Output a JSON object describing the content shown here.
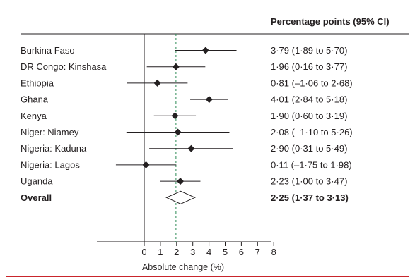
{
  "chart_data": {
    "type": "forest",
    "column_header": "Percentage points (95% CI)",
    "xlabel": "Absolute change (%)",
    "xlim": [
      0,
      8
    ],
    "x_ticks": [
      0,
      1,
      2,
      3,
      4,
      5,
      6,
      7,
      8
    ],
    "reference_line": 1.96,
    "rows": [
      {
        "label": "Burkina Faso",
        "estimate": 3.79,
        "lower": 1.89,
        "upper": 5.7,
        "text": "3·79 (1·89 to 5·70)"
      },
      {
        "label": "DR Congo: Kinshasa",
        "estimate": 1.96,
        "lower": 0.16,
        "upper": 3.77,
        "text": "1·96 (0·16 to 3·77)"
      },
      {
        "label": "Ethiopia",
        "estimate": 0.81,
        "lower": -1.06,
        "upper": 2.68,
        "text": "0·81 (–1·06 to 2·68)"
      },
      {
        "label": "Ghana",
        "estimate": 4.01,
        "lower": 2.84,
        "upper": 5.18,
        "text": "4·01 (2·84 to 5·18)"
      },
      {
        "label": "Kenya",
        "estimate": 1.9,
        "lower": 0.6,
        "upper": 3.19,
        "text": "1·90 (0·60 to 3·19)"
      },
      {
        "label": "Niger: Niamey",
        "estimate": 2.08,
        "lower": -1.1,
        "upper": 5.26,
        "text": "2·08 (–1·10 to 5·26)"
      },
      {
        "label": "Nigeria: Kaduna",
        "estimate": 2.9,
        "lower": 0.31,
        "upper": 5.49,
        "text": "2·90 (0·31 to 5·49)"
      },
      {
        "label": "Nigeria: Lagos",
        "estimate": 0.11,
        "lower": -1.75,
        "upper": 1.98,
        "text": "0·11 (–1·75 to 1·98)"
      },
      {
        "label": "Uganda",
        "estimate": 2.23,
        "lower": 1.0,
        "upper": 3.47,
        "text": "2·23 (1·00 to 3·47)"
      }
    ],
    "overall": {
      "label": "Overall",
      "estimate": 2.25,
      "lower": 1.37,
      "upper": 3.13,
      "text": "2·25 (1·37 to 3·13)"
    }
  }
}
